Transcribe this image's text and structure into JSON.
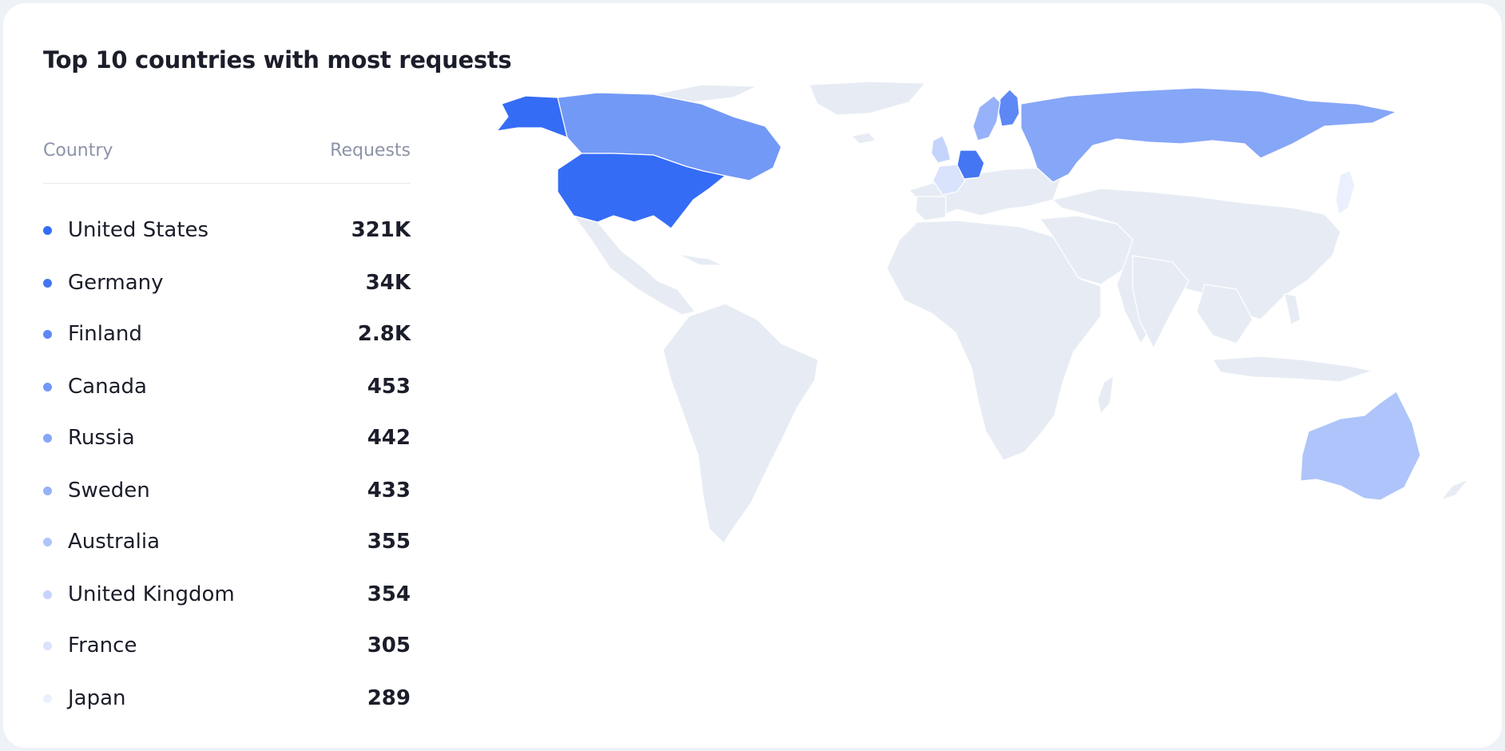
{
  "title": "Top 10 countries with most requests",
  "table": {
    "col_country": "Country",
    "col_requests": "Requests"
  },
  "countries": [
    {
      "name": "United States",
      "requests": "321K",
      "color": "#356cf6"
    },
    {
      "name": "Germany",
      "requests": "34K",
      "color": "#4476f3"
    },
    {
      "name": "Finland",
      "requests": "2.8K",
      "color": "#5d88f5"
    },
    {
      "name": "Canada",
      "requests": "453",
      "color": "#7399f6"
    },
    {
      "name": "Russia",
      "requests": "442",
      "color": "#86a6f7"
    },
    {
      "name": "Sweden",
      "requests": "433",
      "color": "#97b2f8"
    },
    {
      "name": "Australia",
      "requests": "355",
      "color": "#aec4fa"
    },
    {
      "name": "United Kingdom",
      "requests": "354",
      "color": "#c4d4fb"
    },
    {
      "name": "France",
      "requests": "305",
      "color": "#d9e3fc"
    },
    {
      "name": "Japan",
      "requests": "289",
      "color": "#eaf0fd"
    }
  ],
  "map": {
    "base_color": "#e7ecf4"
  }
}
